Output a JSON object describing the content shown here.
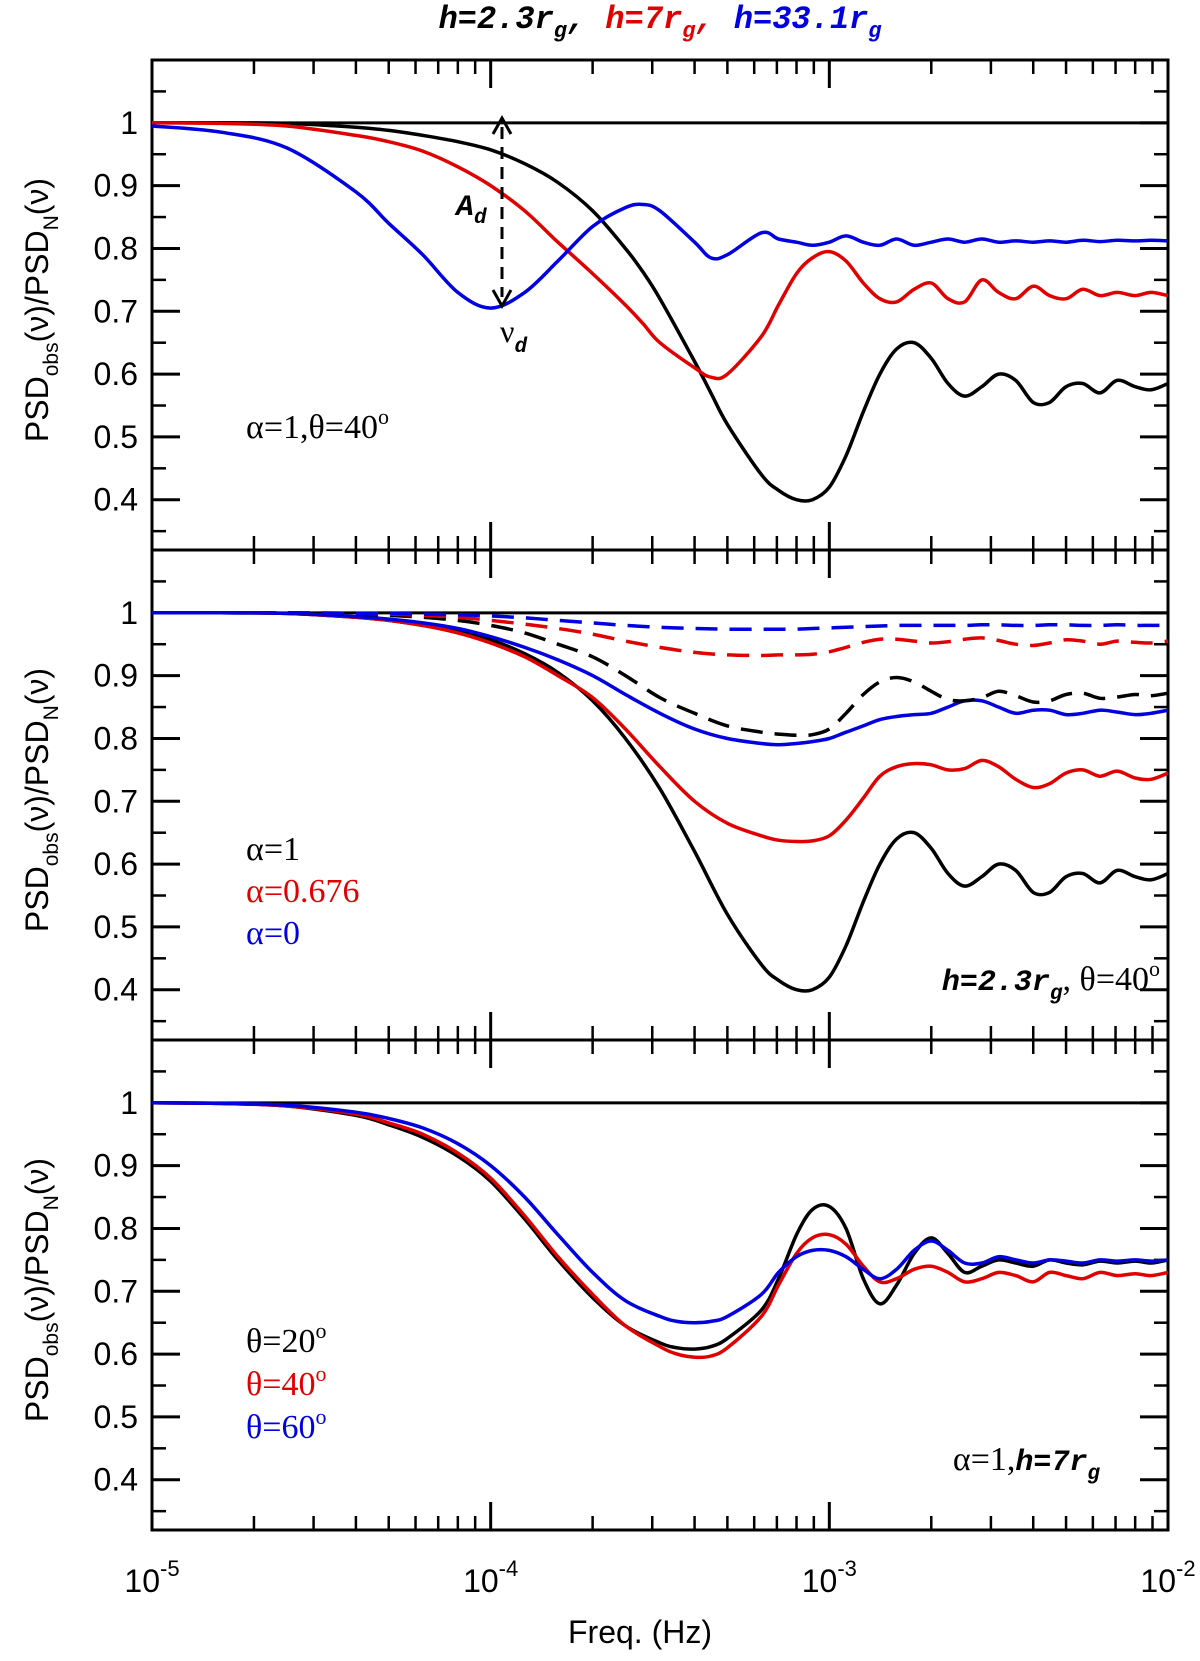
{
  "figure": {
    "title_parts": [
      {
        "text": "h=2.3r",
        "sub": "g",
        "sep": ",",
        "color": "#000000"
      },
      {
        "text": "h=7r",
        "sub": "g",
        "sep": ",",
        "color": "#e00000"
      },
      {
        "text": "h=33.1r",
        "sub": "g",
        "sep": "",
        "color": "#0000e0"
      }
    ],
    "ylabel": {
      "a": "PSD",
      "b": "obs",
      "c": "(ν)/PSD",
      "d": "N",
      "e": "(ν)"
    },
    "xlabel": "Freq. (Hz)",
    "x_ticks": [
      {
        "base": "10",
        "exp": "-5"
      },
      {
        "base": "10",
        "exp": "-4"
      },
      {
        "base": "10",
        "exp": "-3"
      },
      {
        "base": "10",
        "exp": "-2"
      }
    ],
    "y_ticks": [
      "1",
      "0.9",
      "0.8",
      "0.7",
      "0.6",
      "0.5",
      "0.4"
    ],
    "colors": {
      "black": "#000000",
      "red": "#e00000",
      "blue": "#0000e0"
    }
  },
  "annotations": {
    "Ad_main": "A",
    "Ad_sub": "d",
    "nud_main": "ν",
    "nud_sub": "d"
  },
  "panels": [
    {
      "legend": [
        {
          "text": "α=1,θ=40",
          "sup": "o",
          "color": "#000000"
        }
      ],
      "note": null
    },
    {
      "legend": [
        {
          "text": "α=1",
          "sup": "",
          "color": "#000000"
        },
        {
          "text": "α=0.676",
          "sup": "",
          "color": "#e00000"
        },
        {
          "text": "α=0",
          "sup": "",
          "color": "#0000e0"
        }
      ],
      "note": {
        "pre": "",
        "bold": "h=2.3r",
        "sub": "g",
        "post": ", θ=40",
        "sup": "o"
      }
    },
    {
      "legend": [
        {
          "text": "θ=20",
          "sup": "o",
          "color": "#000000"
        },
        {
          "text": "θ=40",
          "sup": "o",
          "color": "#e00000"
        },
        {
          "text": "θ=60",
          "sup": "o",
          "color": "#0000e0"
        }
      ],
      "note": {
        "pre": "α=1,",
        "bold": "h=7r",
        "sub": "g",
        "post": "",
        "sup": ""
      }
    }
  ],
  "chart_data": [
    {
      "type": "line",
      "title": "h=2.3rg, h=7rg, h=33.1rg",
      "xlabel": "Freq. (Hz)",
      "ylabel": "PSDobs(ν)/PSDN(ν)",
      "xscale": "log",
      "xlim": [
        1e-05,
        0.01
      ],
      "ylim": [
        0.32,
        1.1
      ],
      "x": [
        1e-05,
        1.6e-05,
        2.5e-05,
        4e-05,
        5e-05,
        6.3e-05,
        8e-05,
        0.0001,
        0.000126,
        0.000158,
        0.0002,
        0.00025,
        0.000282,
        0.000316,
        0.0004,
        0.000447,
        0.0005,
        0.00063,
        0.000708,
        0.0008,
        0.000891,
        0.001,
        0.00112,
        0.00126,
        0.00141,
        0.00158,
        0.00178,
        0.002,
        0.00224,
        0.00251,
        0.00282,
        0.00316,
        0.00355,
        0.004,
        0.00447,
        0.005,
        0.0056,
        0.0063,
        0.00708,
        0.008,
        0.00891,
        0.01
      ],
      "series": [
        {
          "name": "h=2.3rg",
          "color": "#000000",
          "dash": false,
          "values": [
            1.0,
            1.0,
            0.999,
            0.993,
            0.988,
            0.98,
            0.97,
            0.957,
            0.935,
            0.905,
            0.86,
            0.8,
            0.762,
            0.72,
            0.62,
            0.57,
            0.52,
            0.44,
            0.415,
            0.4,
            0.4,
            0.42,
            0.47,
            0.54,
            0.6,
            0.64,
            0.65,
            0.625,
            0.585,
            0.565,
            0.58,
            0.6,
            0.59,
            0.555,
            0.555,
            0.58,
            0.585,
            0.57,
            0.59,
            0.58,
            0.575,
            0.585
          ]
        },
        {
          "name": "h=7rg",
          "color": "#e00000",
          "dash": false,
          "values": [
            1.0,
            0.999,
            0.995,
            0.98,
            0.97,
            0.955,
            0.93,
            0.9,
            0.86,
            0.81,
            0.76,
            0.71,
            0.68,
            0.65,
            0.61,
            0.595,
            0.6,
            0.66,
            0.71,
            0.76,
            0.785,
            0.795,
            0.78,
            0.745,
            0.72,
            0.715,
            0.735,
            0.745,
            0.72,
            0.715,
            0.75,
            0.73,
            0.72,
            0.74,
            0.725,
            0.72,
            0.735,
            0.725,
            0.73,
            0.725,
            0.73,
            0.725
          ]
        },
        {
          "name": "h=33.1rg",
          "color": "#0000e0",
          "dash": false,
          "values": [
            0.995,
            0.985,
            0.96,
            0.89,
            0.84,
            0.79,
            0.73,
            0.705,
            0.73,
            0.78,
            0.835,
            0.865,
            0.87,
            0.86,
            0.81,
            0.785,
            0.79,
            0.825,
            0.815,
            0.81,
            0.805,
            0.81,
            0.82,
            0.81,
            0.805,
            0.815,
            0.805,
            0.81,
            0.815,
            0.81,
            0.815,
            0.81,
            0.812,
            0.81,
            0.812,
            0.81,
            0.813,
            0.811,
            0.813,
            0.812,
            0.813,
            0.812
          ]
        }
      ],
      "annotations": [
        "A_d",
        "ν_d",
        "α=1,θ=40°"
      ]
    },
    {
      "type": "line",
      "xscale": "log",
      "xlim": [
        1e-05,
        0.01
      ],
      "ylim": [
        0.32,
        1.1
      ],
      "x": [
        1e-05,
        1.6e-05,
        2.5e-05,
        4e-05,
        5e-05,
        6.3e-05,
        8e-05,
        0.0001,
        0.000126,
        0.000158,
        0.0002,
        0.00025,
        0.000316,
        0.0004,
        0.0005,
        0.00063,
        0.000708,
        0.0008,
        0.000891,
        0.001,
        0.00112,
        0.00126,
        0.00141,
        0.00158,
        0.00178,
        0.002,
        0.00224,
        0.00251,
        0.00282,
        0.00316,
        0.00355,
        0.004,
        0.00447,
        0.005,
        0.0056,
        0.0063,
        0.00708,
        0.008,
        0.00891,
        0.01
      ],
      "series": [
        {
          "name": "α=1",
          "color": "#000000",
          "dash": false,
          "values": [
            1.0,
            1.0,
            0.999,
            0.993,
            0.988,
            0.98,
            0.97,
            0.957,
            0.935,
            0.905,
            0.86,
            0.8,
            0.72,
            0.62,
            0.52,
            0.44,
            0.415,
            0.4,
            0.4,
            0.42,
            0.47,
            0.54,
            0.6,
            0.64,
            0.65,
            0.625,
            0.585,
            0.565,
            0.58,
            0.6,
            0.59,
            0.555,
            0.555,
            0.58,
            0.585,
            0.57,
            0.59,
            0.58,
            0.575,
            0.585
          ]
        },
        {
          "name": "α=0.676",
          "color": "#e00000",
          "dash": false,
          "values": [
            1.0,
            1.0,
            0.999,
            0.993,
            0.988,
            0.98,
            0.968,
            0.952,
            0.93,
            0.9,
            0.865,
            0.815,
            0.755,
            0.7,
            0.665,
            0.645,
            0.638,
            0.636,
            0.637,
            0.645,
            0.67,
            0.705,
            0.74,
            0.755,
            0.76,
            0.758,
            0.75,
            0.752,
            0.765,
            0.755,
            0.735,
            0.722,
            0.728,
            0.745,
            0.75,
            0.74,
            0.748,
            0.737,
            0.735,
            0.745
          ]
        },
        {
          "name": "α=0",
          "color": "#0000e0",
          "dash": false,
          "values": [
            1.0,
            1.0,
            0.999,
            0.994,
            0.99,
            0.984,
            0.975,
            0.962,
            0.945,
            0.925,
            0.9,
            0.87,
            0.84,
            0.815,
            0.8,
            0.792,
            0.79,
            0.792,
            0.795,
            0.8,
            0.81,
            0.82,
            0.83,
            0.835,
            0.838,
            0.84,
            0.85,
            0.86,
            0.86,
            0.85,
            0.84,
            0.845,
            0.845,
            0.838,
            0.84,
            0.845,
            0.842,
            0.838,
            0.84,
            0.845
          ]
        },
        {
          "name": "α=1 (dashed)",
          "color": "#000000",
          "dash": true,
          "values": [
            1.0,
            1.0,
            1.0,
            0.998,
            0.996,
            0.993,
            0.988,
            0.98,
            0.968,
            0.95,
            0.93,
            0.9,
            0.865,
            0.84,
            0.82,
            0.81,
            0.807,
            0.805,
            0.806,
            0.815,
            0.84,
            0.87,
            0.89,
            0.897,
            0.89,
            0.875,
            0.862,
            0.86,
            0.865,
            0.875,
            0.868,
            0.858,
            0.86,
            0.87,
            0.872,
            0.864,
            0.866,
            0.87,
            0.868,
            0.872
          ]
        },
        {
          "name": "α=0.676 (dashed)",
          "color": "#e00000",
          "dash": true,
          "values": [
            1.0,
            1.0,
            1.0,
            0.999,
            0.998,
            0.996,
            0.993,
            0.988,
            0.982,
            0.975,
            0.966,
            0.955,
            0.945,
            0.937,
            0.933,
            0.932,
            0.933,
            0.933,
            0.934,
            0.938,
            0.945,
            0.953,
            0.958,
            0.958,
            0.955,
            0.952,
            0.954,
            0.958,
            0.96,
            0.956,
            0.95,
            0.948,
            0.952,
            0.957,
            0.955,
            0.95,
            0.955,
            0.953,
            0.952,
            0.955
          ]
        },
        {
          "name": "α=0 (dashed)",
          "color": "#0000e0",
          "dash": true,
          "values": [
            1.0,
            1.0,
            1.0,
            0.999,
            0.999,
            0.998,
            0.997,
            0.995,
            0.992,
            0.988,
            0.984,
            0.98,
            0.977,
            0.975,
            0.974,
            0.974,
            0.974,
            0.974,
            0.975,
            0.976,
            0.977,
            0.978,
            0.979,
            0.98,
            0.98,
            0.98,
            0.98,
            0.98,
            0.981,
            0.981,
            0.98,
            0.98,
            0.981,
            0.981,
            0.98,
            0.98,
            0.981,
            0.98,
            0.98,
            0.98
          ]
        }
      ],
      "annotations": [
        "α=1",
        "α=0.676",
        "α=0",
        "h=2.3rg, θ=40°"
      ]
    },
    {
      "type": "line",
      "xlabel": "Freq. (Hz)",
      "xscale": "log",
      "xlim": [
        1e-05,
        0.01
      ],
      "ylim": [
        0.32,
        1.1
      ],
      "x": [
        1e-05,
        1.6e-05,
        2.5e-05,
        4e-05,
        5e-05,
        6.3e-05,
        8e-05,
        0.0001,
        0.000126,
        0.000158,
        0.0002,
        0.00025,
        0.000316,
        0.000355,
        0.0004,
        0.000447,
        0.0005,
        0.00063,
        0.000708,
        0.0008,
        0.000891,
        0.001,
        0.00112,
        0.00126,
        0.00141,
        0.00158,
        0.00178,
        0.002,
        0.00224,
        0.00251,
        0.00282,
        0.00316,
        0.00355,
        0.004,
        0.00447,
        0.005,
        0.0056,
        0.0063,
        0.00708,
        0.008,
        0.00891,
        0.01
      ],
      "series": [
        {
          "name": "θ=20°",
          "color": "#000000",
          "dash": false,
          "values": [
            1.0,
            0.999,
            0.995,
            0.98,
            0.965,
            0.945,
            0.915,
            0.875,
            0.815,
            0.75,
            0.69,
            0.645,
            0.618,
            0.61,
            0.608,
            0.612,
            0.625,
            0.67,
            0.72,
            0.79,
            0.83,
            0.835,
            0.8,
            0.72,
            0.68,
            0.71,
            0.76,
            0.785,
            0.76,
            0.73,
            0.74,
            0.75,
            0.745,
            0.74,
            0.75,
            0.745,
            0.742,
            0.748,
            0.745,
            0.748,
            0.745,
            0.75
          ]
        },
        {
          "name": "θ=40°",
          "color": "#e00000",
          "dash": false,
          "values": [
            1.0,
            0.999,
            0.995,
            0.982,
            0.968,
            0.95,
            0.92,
            0.88,
            0.82,
            0.755,
            0.695,
            0.645,
            0.612,
            0.6,
            0.595,
            0.597,
            0.61,
            0.66,
            0.71,
            0.76,
            0.785,
            0.79,
            0.775,
            0.74,
            0.715,
            0.72,
            0.735,
            0.74,
            0.73,
            0.715,
            0.72,
            0.73,
            0.725,
            0.715,
            0.73,
            0.725,
            0.72,
            0.73,
            0.725,
            0.728,
            0.725,
            0.73
          ]
        },
        {
          "name": "θ=60°",
          "color": "#0000e0",
          "dash": false,
          "values": [
            1.0,
            0.999,
            0.996,
            0.985,
            0.975,
            0.96,
            0.935,
            0.9,
            0.85,
            0.79,
            0.73,
            0.685,
            0.66,
            0.652,
            0.65,
            0.652,
            0.66,
            0.695,
            0.73,
            0.755,
            0.765,
            0.765,
            0.755,
            0.735,
            0.72,
            0.735,
            0.765,
            0.78,
            0.765,
            0.745,
            0.745,
            0.755,
            0.75,
            0.745,
            0.75,
            0.748,
            0.745,
            0.75,
            0.748,
            0.75,
            0.748,
            0.75
          ]
        }
      ],
      "annotations": [
        "θ=20°",
        "θ=40°",
        "θ=60°",
        "α=1,h=7rg"
      ]
    }
  ]
}
